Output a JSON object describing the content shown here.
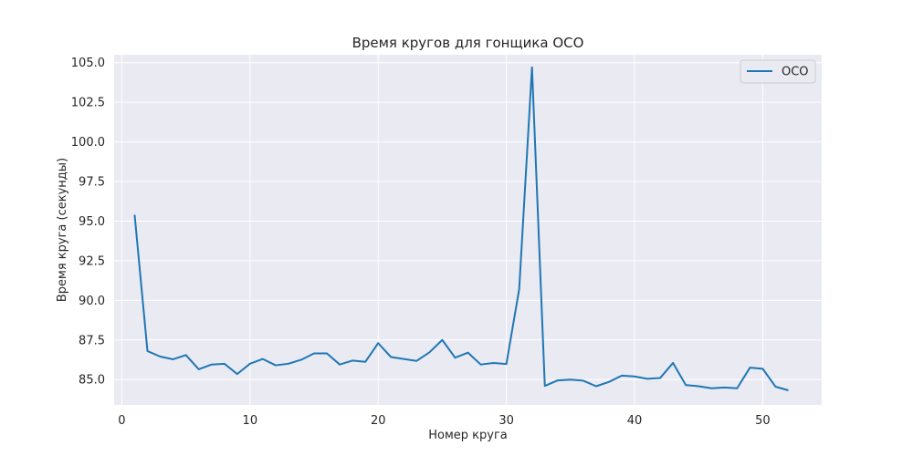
{
  "chart_data": {
    "type": "line",
    "title": "Время кругов для гонщика OCO",
    "xlabel": "Номер круга",
    "ylabel": "Время круга (секунды)",
    "xlim": [
      -0.6,
      54.6
    ],
    "ylim": [
      83.4,
      105.5
    ],
    "xticks": [
      0,
      10,
      20,
      30,
      40,
      50
    ],
    "yticks": [
      85.0,
      87.5,
      90.0,
      92.5,
      95.0,
      97.5,
      100.0,
      102.5,
      105.0
    ],
    "xtick_labels": [
      "0",
      "10",
      "20",
      "30",
      "40",
      "50"
    ],
    "ytick_labels": [
      "85.0",
      "87.5",
      "90.0",
      "92.5",
      "95.0",
      "97.5",
      "100.0",
      "102.5",
      "105.0"
    ],
    "grid": true,
    "legend_position": "top-right",
    "series": [
      {
        "name": "OCO",
        "color": "#1f77b4",
        "x": [
          1,
          2,
          3,
          4,
          5,
          6,
          7,
          8,
          9,
          10,
          11,
          12,
          13,
          14,
          15,
          16,
          17,
          18,
          19,
          20,
          21,
          22,
          23,
          24,
          25,
          26,
          27,
          28,
          29,
          30,
          31,
          32,
          33,
          34,
          35,
          36,
          37,
          38,
          39,
          40,
          41,
          42,
          43,
          44,
          45,
          46,
          47,
          48,
          49,
          50,
          51,
          52
        ],
        "y": [
          95.4,
          86.8,
          86.45,
          86.28,
          86.55,
          85.65,
          85.95,
          86.0,
          85.35,
          86.0,
          86.3,
          85.9,
          86.0,
          86.25,
          86.65,
          86.65,
          85.95,
          86.2,
          86.12,
          87.3,
          86.42,
          86.3,
          86.18,
          86.72,
          87.5,
          86.38,
          86.7,
          85.95,
          86.05,
          85.98,
          90.7,
          104.7,
          84.6,
          84.95,
          85.0,
          84.93,
          84.58,
          84.85,
          85.25,
          85.2,
          85.05,
          85.1,
          86.05,
          84.65,
          84.58,
          84.45,
          84.5,
          84.45,
          85.75,
          85.68,
          84.55,
          84.32
        ]
      }
    ]
  }
}
